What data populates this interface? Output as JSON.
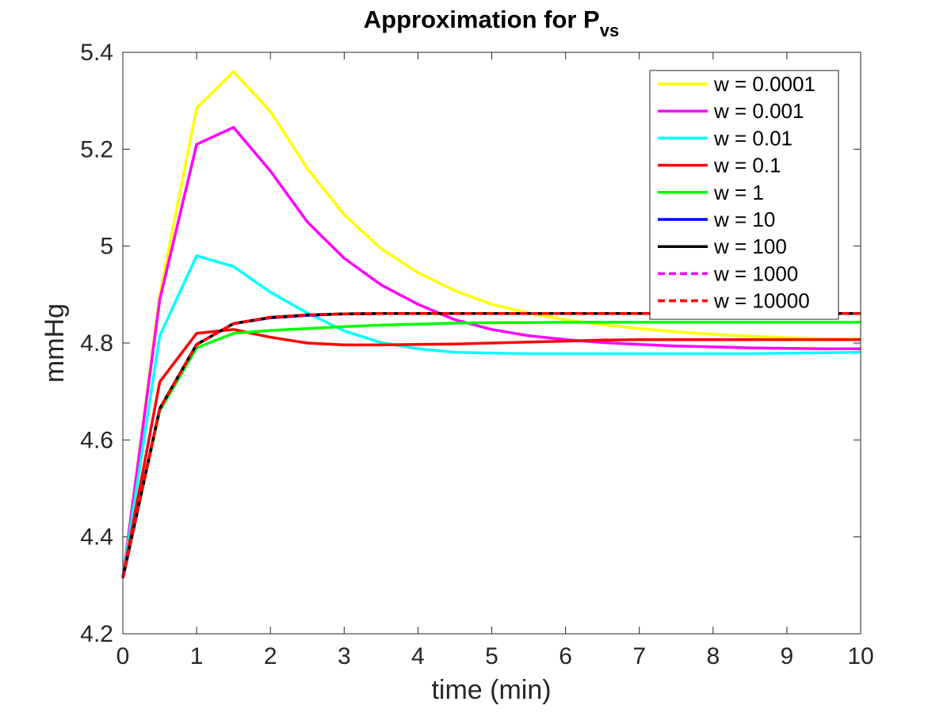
{
  "chart_data": {
    "type": "line",
    "title": "Approximation for P",
    "title_subscript": "vs",
    "xlabel": "time (min)",
    "ylabel": "mmHg",
    "xlim": [
      0,
      10
    ],
    "ylim": [
      4.2,
      5.4
    ],
    "xticks": [
      0,
      1,
      2,
      3,
      4,
      5,
      6,
      7,
      8,
      9,
      10
    ],
    "yticks": [
      4.2,
      4.4,
      4.6,
      4.8,
      5,
      5.2,
      5.4
    ],
    "ytick_labels": [
      "4.2",
      "4.4",
      "4.6",
      "4.8",
      "5",
      "5.2",
      "5.4"
    ],
    "grid": false,
    "legend_position": "top-right",
    "x": [
      0,
      0.5,
      1,
      1.5,
      2,
      2.5,
      3,
      3.5,
      4,
      4.5,
      5,
      5.5,
      6,
      6.5,
      7,
      7.5,
      8,
      8.5,
      9,
      9.5,
      10
    ],
    "series": [
      {
        "name": "w = 0.0001",
        "color": "#ffff00",
        "dashed": false,
        "values": [
          4.315,
          4.9,
          5.285,
          5.36,
          5.278,
          5.16,
          5.065,
          4.995,
          4.945,
          4.908,
          4.88,
          4.862,
          4.848,
          4.838,
          4.83,
          4.823,
          4.818,
          4.814,
          4.811,
          4.809,
          4.808
        ]
      },
      {
        "name": "w = 0.001",
        "color": "#ff00ff",
        "dashed": false,
        "values": [
          4.315,
          4.89,
          5.21,
          5.245,
          5.155,
          5.05,
          4.975,
          4.92,
          4.88,
          4.848,
          4.828,
          4.815,
          4.807,
          4.801,
          4.797,
          4.794,
          4.792,
          4.79,
          4.789,
          4.788,
          4.788
        ]
      },
      {
        "name": "w = 0.01",
        "color": "#00ffff",
        "dashed": false,
        "values": [
          4.315,
          4.815,
          4.98,
          4.958,
          4.905,
          4.862,
          4.825,
          4.801,
          4.788,
          4.781,
          4.779,
          4.778,
          4.778,
          4.778,
          4.778,
          4.778,
          4.778,
          4.778,
          4.779,
          4.78,
          4.781
        ]
      },
      {
        "name": "w = 0.1",
        "color": "#ff0000",
        "dashed": false,
        "values": [
          4.315,
          4.72,
          4.82,
          4.828,
          4.812,
          4.8,
          4.796,
          4.796,
          4.797,
          4.798,
          4.8,
          4.802,
          4.804,
          4.806,
          4.807,
          4.807,
          4.807,
          4.807,
          4.807,
          4.807,
          4.807
        ]
      },
      {
        "name": "w = 1",
        "color": "#00ff00",
        "dashed": false,
        "values": [
          4.315,
          4.66,
          4.79,
          4.82,
          4.826,
          4.83,
          4.834,
          4.837,
          4.839,
          4.841,
          4.842,
          4.842,
          4.843,
          4.843,
          4.843,
          4.843,
          4.843,
          4.843,
          4.843,
          4.843,
          4.843
        ]
      },
      {
        "name": "w = 10",
        "color": "#0000ff",
        "dashed": false,
        "values": [
          4.315,
          4.665,
          4.797,
          4.84,
          4.852,
          4.857,
          4.86,
          4.861,
          4.861,
          4.861,
          4.861,
          4.861,
          4.861,
          4.861,
          4.861,
          4.861,
          4.861,
          4.861,
          4.861,
          4.861,
          4.861
        ]
      },
      {
        "name": "w = 100",
        "color": "#000000",
        "dashed": false,
        "values": [
          4.315,
          4.665,
          4.797,
          4.84,
          4.853,
          4.858,
          4.86,
          4.861,
          4.861,
          4.861,
          4.861,
          4.861,
          4.861,
          4.861,
          4.861,
          4.861,
          4.861,
          4.861,
          4.861,
          4.861,
          4.861
        ]
      },
      {
        "name": "w = 1000",
        "color": "#ff00ff",
        "dashed": true,
        "values": [
          4.315,
          4.665,
          4.797,
          4.84,
          4.853,
          4.858,
          4.86,
          4.861,
          4.861,
          4.861,
          4.861,
          4.861,
          4.861,
          4.861,
          4.861,
          4.861,
          4.861,
          4.861,
          4.861,
          4.861,
          4.861
        ]
      },
      {
        "name": "w = 10000",
        "color": "#ff0000",
        "dashed": true,
        "values": [
          4.315,
          4.665,
          4.797,
          4.84,
          4.853,
          4.858,
          4.86,
          4.861,
          4.861,
          4.861,
          4.861,
          4.861,
          4.861,
          4.861,
          4.861,
          4.861,
          4.861,
          4.861,
          4.861,
          4.861,
          4.861
        ]
      }
    ]
  }
}
